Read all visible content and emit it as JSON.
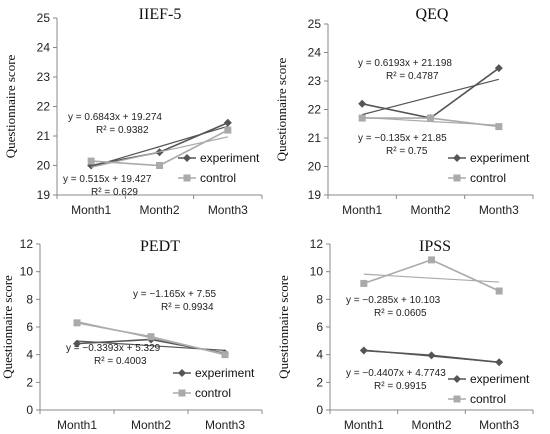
{
  "chart_data": [
    {
      "type": "line",
      "title": "IIEF-5",
      "ylabel": "Questionnaire   score",
      "categories": [
        "Month1",
        "Month2",
        "Month3"
      ],
      "ylim": [
        19,
        25
      ],
      "yticks": [
        19,
        20,
        21,
        22,
        23,
        24,
        25
      ],
      "series": [
        {
          "name": "experiment",
          "values": [
            20.0,
            20.45,
            21.45
          ],
          "trend": [
            19.96,
            20.64,
            21.33
          ],
          "color": "#555555",
          "marker": "diamond"
        },
        {
          "name": "control",
          "values": [
            20.15,
            20.0,
            21.2
          ],
          "trend": [
            19.94,
            20.46,
            20.97
          ],
          "color": "#aaaaaa",
          "marker": "square"
        }
      ],
      "annotations": [
        {
          "line1": "y = 0.6843x + 19.274",
          "line2": "R² = 0.9382"
        },
        {
          "line1": "y = 0.515x + 19.427",
          "line2": "R² = 0.629"
        }
      ]
    },
    {
      "type": "line",
      "title": "QEQ",
      "ylabel": "Questionnaire   score",
      "categories": [
        "Month1",
        "Month2",
        "Month3"
      ],
      "ylim": [
        19,
        25
      ],
      "yticks": [
        19,
        20,
        21,
        22,
        23,
        24,
        25
      ],
      "series": [
        {
          "name": "experiment",
          "values": [
            22.2,
            21.7,
            23.45
          ],
          "trend": [
            21.82,
            22.44,
            23.06
          ],
          "color": "#555555",
          "marker": "diamond"
        },
        {
          "name": "control",
          "values": [
            21.7,
            21.7,
            21.4
          ],
          "trend": [
            21.72,
            21.58,
            21.45
          ],
          "color": "#aaaaaa",
          "marker": "square"
        }
      ],
      "annotations": [
        {
          "line1": "y = 0.6193x + 21.198",
          "line2": "R² = 0.4787"
        },
        {
          "line1": "y = −0.135x + 21.85",
          "line2": "R² = 0.75"
        }
      ]
    },
    {
      "type": "line",
      "title": "PEDT",
      "ylabel": "Questionnaire   score",
      "categories": [
        "Month1",
        "Month2",
        "Month3"
      ],
      "ylim": [
        0,
        12
      ],
      "yticks": [
        0,
        2,
        4,
        6,
        8,
        10,
        12
      ],
      "series": [
        {
          "name": "experiment",
          "values": [
            4.8,
            5.1,
            4.1
          ],
          "trend": [
            4.99,
            4.65,
            4.31
          ],
          "color": "#555555",
          "marker": "diamond"
        },
        {
          "name": "control",
          "values": [
            6.3,
            5.3,
            4.0
          ],
          "trend": [
            6.39,
            5.22,
            4.06
          ],
          "color": "#aaaaaa",
          "marker": "square"
        }
      ],
      "annotations": [
        {
          "line1": "y = −1.165x + 7.55",
          "line2": "R² = 0.9934"
        },
        {
          "line1": "y = −0.3393x + 5.329",
          "line2": "R² = 0.4003"
        }
      ]
    },
    {
      "type": "line",
      "title": "IPSS",
      "ylabel": "Questionnaire   score",
      "categories": [
        "Month1",
        "Month2",
        "Month3"
      ],
      "ylim": [
        0,
        12
      ],
      "yticks": [
        0,
        2,
        4,
        6,
        8,
        10,
        12
      ],
      "series": [
        {
          "name": "experiment",
          "values": [
            4.3,
            3.95,
            3.45
          ],
          "trend": [
            4.33,
            3.89,
            3.45
          ],
          "color": "#555555",
          "marker": "diamond"
        },
        {
          "name": "control",
          "values": [
            9.15,
            10.85,
            8.6
          ],
          "trend": [
            9.82,
            9.53,
            9.25
          ],
          "color": "#aaaaaa",
          "marker": "square"
        }
      ],
      "annotations": [
        {
          "line1": "y = −0.285x + 10.103",
          "line2": "R² = 0.0605"
        },
        {
          "line1": "y = −0.4407x + 4.7743",
          "line2": "R² = 0.9915"
        }
      ]
    }
  ]
}
